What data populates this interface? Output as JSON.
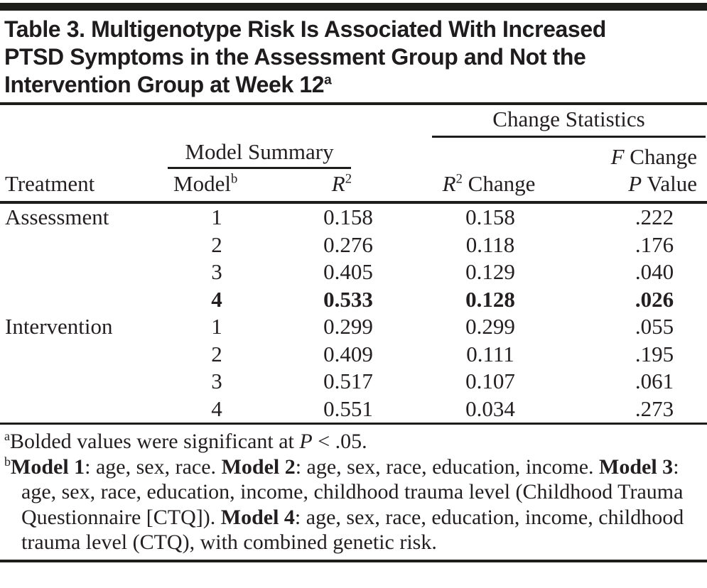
{
  "title": {
    "lines": [
      [
        {
          "t": "Table 3. Multigenotype Risk Is Associated With Increased"
        }
      ],
      [
        {
          "t": "PTSD Symptoms in the Assessment Group and Not the"
        }
      ],
      [
        {
          "t": "Intervention Group at Week 12"
        },
        {
          "t": "a",
          "sup": true
        }
      ]
    ]
  },
  "table": {
    "spanners": {
      "change_statistics": [
        {
          "t": "Change Statistics"
        }
      ],
      "model_summary": [
        {
          "t": "Model Summary"
        }
      ],
      "f_change": [
        {
          "t": "F",
          "i": true
        },
        {
          "t": " Change"
        }
      ]
    },
    "columns": {
      "treatment": [
        {
          "t": "Treatment"
        }
      ],
      "model": [
        {
          "t": "Model"
        },
        {
          "t": "b",
          "sup": true
        }
      ],
      "r2": [
        {
          "t": "R",
          "i": true
        },
        {
          "t": "2",
          "sup": true
        }
      ],
      "r2_change": [
        {
          "t": "R",
          "i": true
        },
        {
          "t": "2",
          "sup": true
        },
        {
          "t": " Change"
        }
      ],
      "p_value": [
        {
          "t": "P",
          "i": true
        },
        {
          "t": " Value"
        }
      ]
    },
    "rows": [
      {
        "treatment": "Assessment",
        "model": "1",
        "r2": "0.158",
        "r2_change": "0.158",
        "f_change_p_value": ".222",
        "bold": false
      },
      {
        "treatment": "",
        "model": "2",
        "r2": "0.276",
        "r2_change": "0.118",
        "f_change_p_value": ".176",
        "bold": false
      },
      {
        "treatment": "",
        "model": "3",
        "r2": "0.405",
        "r2_change": "0.129",
        "f_change_p_value": ".040",
        "bold": false
      },
      {
        "treatment": "",
        "model": "4",
        "r2": "0.533",
        "r2_change": "0.128",
        "f_change_p_value": ".026",
        "bold": true
      },
      {
        "treatment": "Intervention",
        "model": "1",
        "r2": "0.299",
        "r2_change": "0.299",
        "f_change_p_value": ".055",
        "bold": false
      },
      {
        "treatment": "",
        "model": "2",
        "r2": "0.409",
        "r2_change": "0.111",
        "f_change_p_value": ".195",
        "bold": false
      },
      {
        "treatment": "",
        "model": "3",
        "r2": "0.517",
        "r2_change": "0.107",
        "f_change_p_value": ".061",
        "bold": false
      },
      {
        "treatment": "",
        "model": "4",
        "r2": "0.551",
        "r2_change": "0.034",
        "f_change_p_value": ".273",
        "bold": false
      }
    ]
  },
  "footnotes": {
    "a": [
      {
        "t": "a",
        "sup": true
      },
      {
        "t": "Bolded values were significant at "
      },
      {
        "t": "P",
        "i": true
      },
      {
        "t": " < .05."
      }
    ],
    "b": [
      {
        "t": "b",
        "sup": true
      },
      {
        "t": "Model 1",
        "b": true
      },
      {
        "t": ": age, sex, race. "
      },
      {
        "t": "Model 2",
        "b": true
      },
      {
        "t": ": age, sex, race, education, income. "
      },
      {
        "t": "Model 3",
        "b": true
      },
      {
        "t": ": age, sex, race, education, income, childhood trauma level (Childhood Trauma Questionnaire [CTQ]). "
      },
      {
        "t": "Model 4",
        "b": true
      },
      {
        "t": ": age, sex, race, education, income, childhood trauma level (CTQ), with combined genetic risk."
      }
    ]
  },
  "colors": {
    "ink": "#231f20",
    "rule": "#1d1d1b",
    "background": "#ffffff"
  }
}
